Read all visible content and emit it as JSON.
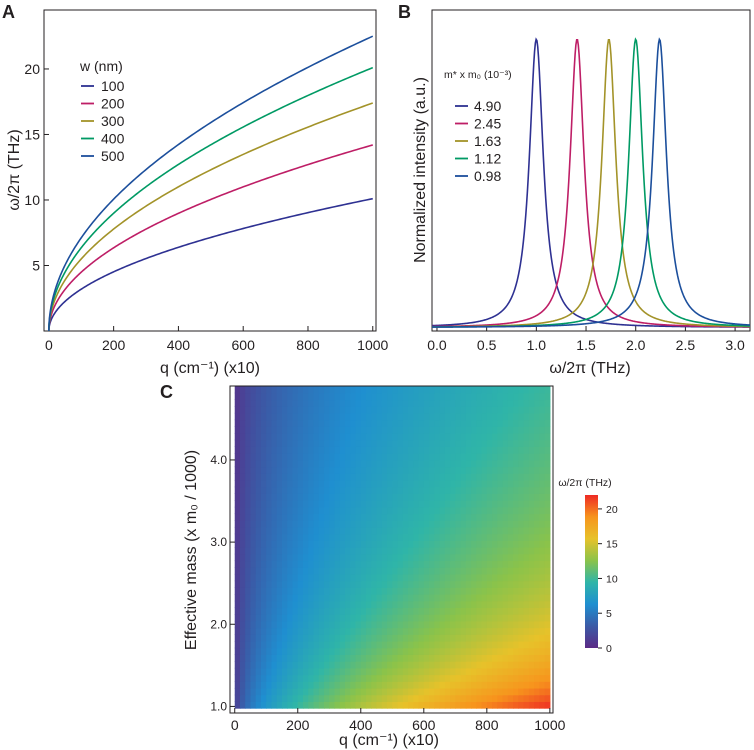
{
  "panels": {
    "a": {
      "letter": "A",
      "chart_data": {
        "type": "line",
        "title": "",
        "xlabel": "q (cm⁻¹) (x10)",
        "ylabel": "ω/2π (THz)",
        "xlim": [
          -15,
          1010
        ],
        "ylim": [
          0,
          24.5
        ],
        "xticks": [
          0,
          200,
          400,
          600,
          800,
          1000
        ],
        "yticks": [
          5,
          10,
          15,
          20
        ],
        "legend_title": "w (nm)",
        "legend_position": "upper-left",
        "model": "y = value_at_1000 * sqrt(x/1000)",
        "series": [
          {
            "name": "100",
            "color": "#2e3192",
            "value_at_1000": 10.1
          },
          {
            "name": "200",
            "color": "#be1e66",
            "value_at_1000": 14.2
          },
          {
            "name": "300",
            "color": "#a39329",
            "value_at_1000": 17.4
          },
          {
            "name": "400",
            "color": "#009a64",
            "value_at_1000": 20.1
          },
          {
            "name": "500",
            "color": "#1c4f9c",
            "value_at_1000": 22.5
          }
        ]
      }
    },
    "b": {
      "letter": "B",
      "chart_data": {
        "type": "line",
        "title": "",
        "xlabel": "ω/2π (THz)",
        "ylabel": "Normalized intensity (a.u.)",
        "xlim": [
          -0.05,
          3.15
        ],
        "ylim": [
          0,
          1.1
        ],
        "xticks": [
          "0.0",
          "0.5",
          "1.0",
          "1.5",
          "2.0",
          "2.5",
          "3.0"
        ],
        "legend_title": "m* x m₀ (10⁻³)",
        "legend_position": "left",
        "model": "lorentzian, half-width 0.085 THz, baseline 0.012",
        "series": [
          {
            "name": "4.90",
            "center": 1.0,
            "color": "#2e3192"
          },
          {
            "name": "2.45",
            "center": 1.41,
            "color": "#be1e66"
          },
          {
            "name": "1.63",
            "center": 1.73,
            "color": "#a39329"
          },
          {
            "name": "1.12",
            "center": 2.0,
            "color": "#009a64"
          },
          {
            "name": "0.98",
            "center": 2.24,
            "color": "#1c4f9c"
          }
        ]
      }
    },
    "c": {
      "letter": "C",
      "chart_data": {
        "type": "heatmap",
        "title": "",
        "xlabel": "q (cm⁻¹) (x10)",
        "ylabel": "Effective mass (x m₀ / 1000)",
        "xlim": [
          -15,
          1010
        ],
        "ylim": [
          0.92,
          4.9
        ],
        "data_extent": {
          "x": [
            0,
            1000
          ],
          "y": [
            0.98,
            4.9
          ]
        },
        "xticks": [
          0,
          200,
          400,
          600,
          800,
          1000
        ],
        "yticks": [
          "1.0",
          "2.0",
          "3.0",
          "4.0"
        ],
        "z_model": "z = 22 * sqrt(x/1000) / sqrt(y/0.98)",
        "colorbar": {
          "label": "ω/2π (THz)",
          "range": [
            0,
            22
          ],
          "ticks": [
            0,
            5,
            10,
            15,
            20
          ],
          "stops": [
            "#5b2a86",
            "#3b5aa6",
            "#1f8fd0",
            "#2fb5a8",
            "#8bc34a",
            "#e7c22a",
            "#f7941d",
            "#ee2a24"
          ]
        }
      }
    }
  }
}
